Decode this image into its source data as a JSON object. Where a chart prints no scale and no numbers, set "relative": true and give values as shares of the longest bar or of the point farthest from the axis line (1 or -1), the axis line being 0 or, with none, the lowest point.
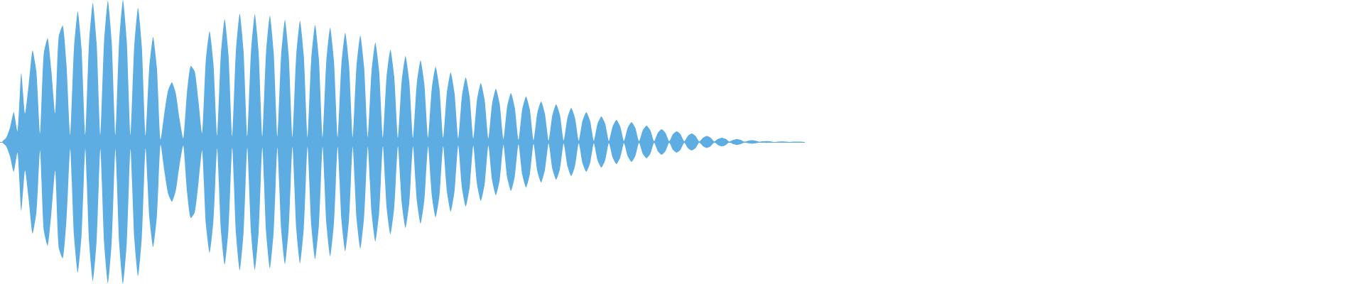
{
  "chart_data": {
    "type": "area",
    "relative": true,
    "categories": [
      null,
      null,
      null,
      null,
      null,
      null,
      null,
      null,
      null,
      null,
      null,
      null,
      null,
      null,
      null,
      null,
      null,
      null,
      null,
      null,
      null,
      null,
      null,
      null,
      null,
      null,
      null,
      null,
      null,
      null,
      null,
      null,
      null,
      null,
      null,
      null,
      null,
      null,
      null,
      null,
      null,
      null,
      null,
      null,
      null,
      null,
      null,
      null,
      null,
      null,
      null,
      null,
      null,
      null,
      null,
      null,
      null,
      null,
      null,
      null,
      null,
      null,
      null,
      null,
      null,
      null,
      null,
      null,
      null,
      null,
      null,
      null,
      null,
      null,
      null,
      null,
      null,
      null,
      null,
      null,
      null,
      null,
      null,
      null,
      null,
      null,
      null,
      null,
      null,
      null,
      null,
      null,
      null,
      null,
      null,
      null,
      null,
      null,
      null,
      null,
      null,
      null,
      null,
      null,
      null,
      null,
      null,
      null,
      null,
      null,
      null,
      null,
      null,
      null,
      null,
      null,
      null,
      null,
      null,
      null,
      null,
      null,
      null,
      null,
      null,
      null,
      null,
      null,
      null,
      null,
      null,
      null,
      null,
      null,
      null,
      null,
      null,
      null,
      null,
      null,
      null,
      null,
      null,
      null,
      null,
      null,
      null,
      null,
      null,
      null,
      null,
      null,
      null,
      null,
      null,
      null,
      null,
      null,
      null,
      null,
      null,
      null,
      null,
      null,
      null,
      null,
      null,
      null,
      null,
      null,
      null,
      null,
      null,
      null,
      null,
      null,
      null,
      null,
      null,
      null,
      null,
      null,
      null,
      null,
      null,
      null,
      null,
      null,
      null,
      null,
      null,
      null,
      null,
      null,
      null,
      null,
      null,
      null,
      null,
      null,
      null,
      null,
      null,
      null,
      null,
      null,
      null,
      null,
      null,
      null,
      null,
      null,
      null,
      null
    ],
    "series": [
      {
        "color": "#5dade2",
        "values": [
          0.005,
          0.03,
          0.1,
          0.21,
          0.075,
          0.485,
          0.2,
          0.41,
          0.645,
          0.5,
          0.06,
          0.625,
          0.73,
          0.5,
          0.2,
          0.75,
          0.82,
          0.55,
          0.05,
          0.66,
          0.92,
          0.66,
          0.05,
          0.7,
          0.98,
          0.7,
          0.05,
          0.71,
          0.995,
          0.71,
          0.05,
          0.715,
          1,
          0.715,
          0.05,
          0.675,
          0.945,
          0.675,
          0.045,
          0.53,
          0.74,
          0.525,
          0.02,
          0.205,
          0.365,
          0.42,
          0.345,
          0.165,
          0.025,
          0.35,
          0.535,
          0.5,
          0.3,
          0.06,
          0.575,
          0.78,
          0.56,
          0.045,
          0.62,
          0.865,
          0.62,
          0.04,
          0.645,
          0.905,
          0.645,
          0.04,
          0.64,
          0.9,
          0.64,
          0.04,
          0.635,
          0.89,
          0.635,
          0.04,
          0.615,
          0.86,
          0.61,
          0.035,
          0.61,
          0.855,
          0.61,
          0.035,
          0.59,
          0.825,
          0.59,
          0.035,
          0.575,
          0.805,
          0.575,
          0.035,
          0.55,
          0.77,
          0.55,
          0.035,
          0.535,
          0.75,
          0.535,
          0.035,
          0.5,
          0.7,
          0.5,
          0.03,
          0.465,
          0.65,
          0.465,
          0.03,
          0.43,
          0.605,
          0.43,
          0.03,
          0.41,
          0.575,
          0.41,
          0.03,
          0.38,
          0.53,
          0.38,
          0.03,
          0.35,
          0.49,
          0.35,
          0.025,
          0.325,
          0.455,
          0.325,
          0.025,
          0.3,
          0.415,
          0.3,
          0.025,
          0.27,
          0.375,
          0.27,
          0.02,
          0.25,
          0.345,
          0.245,
          0.015,
          0.23,
          0.32,
          0.23,
          0.013,
          0.205,
          0.285,
          0.2,
          0.01,
          0.19,
          0.265,
          0.19,
          0.01,
          0.17,
          0.24,
          0.17,
          0.009,
          0.15,
          0.21,
          0.15,
          0.009,
          0.13,
          0.18,
          0.13,
          0.008,
          0.11,
          0.155,
          0.11,
          0.007,
          0.1,
          0.14,
          0.1,
          0.006,
          0.083,
          0.115,
          0.083,
          0.005,
          0.065,
          0.09,
          0.065,
          0.005,
          0.055,
          0.075,
          0.055,
          0.005,
          0.044,
          0.06,
          0.043,
          0.004,
          0.03,
          0.042,
          0.03,
          0.004,
          0.022,
          0.03,
          0.022,
          0.003,
          0.015,
          0.02,
          0.015,
          0.002,
          0.009,
          0.012,
          0.009,
          0.002,
          0.005,
          0.006,
          0.004,
          0,
          0.003,
          0.004,
          0.003,
          0,
          0.002,
          0.003,
          0.002,
          0
        ]
      },
      {
        "color": "#5dade2",
        "values": [
          -0.005,
          -0.03,
          -0.1,
          -0.21,
          -0.075,
          -0.485,
          -0.2,
          -0.41,
          -0.645,
          -0.5,
          -0.06,
          -0.625,
          -0.73,
          -0.5,
          -0.2,
          -0.75,
          -0.82,
          -0.55,
          -0.05,
          -0.66,
          -0.92,
          -0.66,
          -0.05,
          -0.7,
          -0.98,
          -0.7,
          -0.05,
          -0.71,
          -0.995,
          -0.71,
          -0.05,
          -0.715,
          -1,
          -0.715,
          -0.05,
          -0.675,
          -0.945,
          -0.675,
          -0.045,
          -0.53,
          -0.74,
          -0.525,
          -0.02,
          -0.205,
          -0.365,
          -0.42,
          -0.345,
          -0.165,
          -0.025,
          -0.35,
          -0.535,
          -0.5,
          -0.3,
          -0.06,
          -0.575,
          -0.78,
          -0.56,
          -0.045,
          -0.62,
          -0.865,
          -0.62,
          -0.04,
          -0.645,
          -0.905,
          -0.645,
          -0.04,
          -0.64,
          -0.9,
          -0.64,
          -0.04,
          -0.635,
          -0.89,
          -0.635,
          -0.04,
          -0.615,
          -0.86,
          -0.61,
          -0.035,
          -0.61,
          -0.855,
          -0.61,
          -0.035,
          -0.59,
          -0.825,
          -0.59,
          -0.035,
          -0.575,
          -0.805,
          -0.575,
          -0.035,
          -0.55,
          -0.77,
          -0.55,
          -0.035,
          -0.535,
          -0.75,
          -0.535,
          -0.035,
          -0.5,
          -0.7,
          -0.5,
          -0.03,
          -0.465,
          -0.65,
          -0.465,
          -0.03,
          -0.43,
          -0.605,
          -0.43,
          -0.03,
          -0.41,
          -0.575,
          -0.41,
          -0.03,
          -0.38,
          -0.53,
          -0.38,
          -0.03,
          -0.35,
          -0.49,
          -0.35,
          -0.025,
          -0.325,
          -0.455,
          -0.325,
          -0.025,
          -0.3,
          -0.415,
          -0.3,
          -0.025,
          -0.27,
          -0.375,
          -0.27,
          -0.02,
          -0.25,
          -0.345,
          -0.245,
          -0.015,
          -0.23,
          -0.32,
          -0.23,
          -0.013,
          -0.205,
          -0.285,
          -0.2,
          -0.01,
          -0.19,
          -0.265,
          -0.19,
          -0.01,
          -0.17,
          -0.24,
          -0.17,
          -0.009,
          -0.15,
          -0.21,
          -0.15,
          -0.009,
          -0.13,
          -0.18,
          -0.13,
          -0.008,
          -0.11,
          -0.155,
          -0.11,
          -0.007,
          -0.1,
          -0.14,
          -0.1,
          -0.006,
          -0.083,
          -0.115,
          -0.083,
          -0.005,
          -0.065,
          -0.09,
          -0.065,
          -0.005,
          -0.055,
          -0.075,
          -0.055,
          -0.005,
          -0.044,
          -0.06,
          -0.043,
          -0.004,
          -0.03,
          -0.042,
          -0.03,
          -0.004,
          -0.022,
          -0.03,
          -0.022,
          -0.003,
          -0.015,
          -0.02,
          -0.015,
          -0.002,
          -0.009,
          -0.012,
          -0.009,
          -0.002,
          -0.005,
          -0.006,
          -0.004,
          0,
          -0.003,
          -0.004,
          -0.003,
          0,
          -0.002,
          -0.003,
          -0.002,
          0
        ]
      }
    ]
  }
}
